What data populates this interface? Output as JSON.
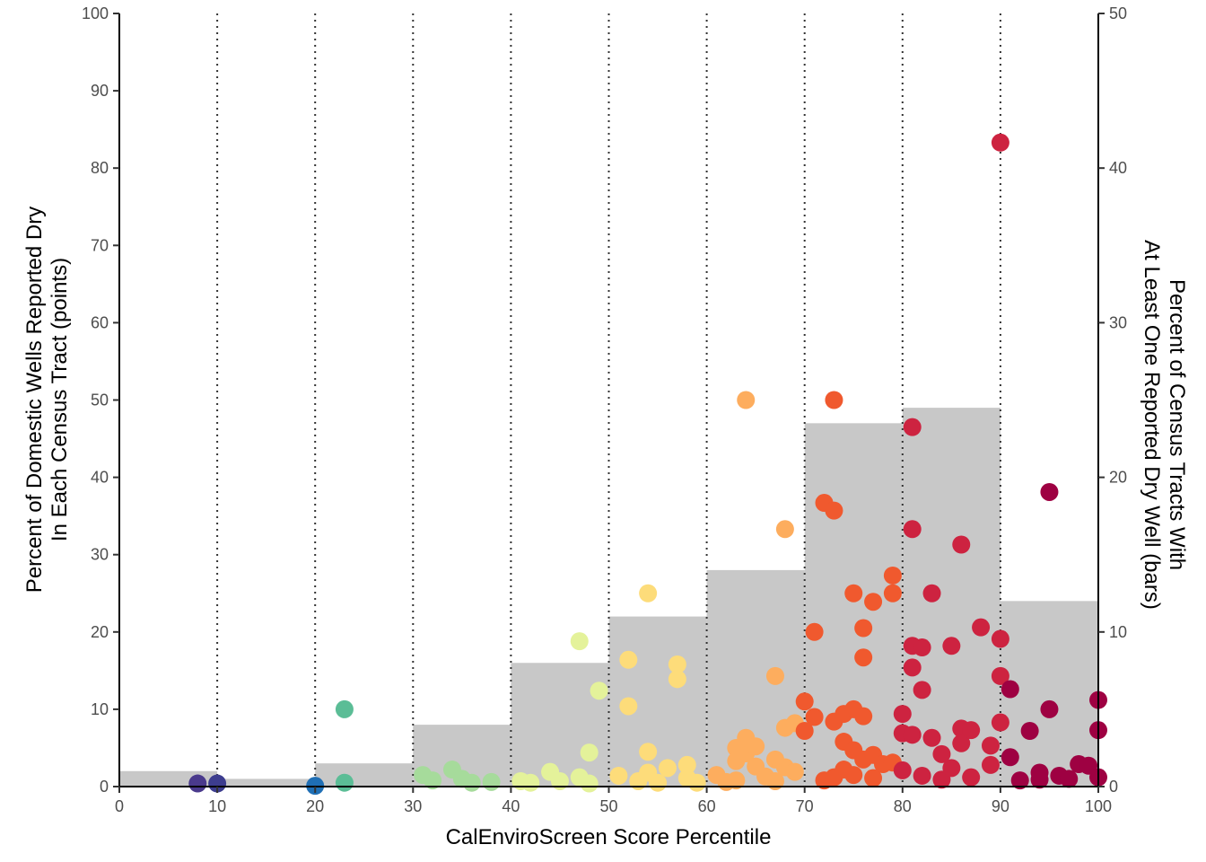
{
  "chart_data": {
    "type": "bar+scatter",
    "x_axis": {
      "title": "CalEnviroScreen Score Percentile",
      "range": [
        0,
        100
      ],
      "ticks": [
        "0",
        "10",
        "20",
        "30",
        "40",
        "50",
        "60",
        "70",
        "80",
        "90",
        "100"
      ]
    },
    "y_axis_left": {
      "title_line1": "Percent of Domestic Wells Reported Dry",
      "title_line2": "In Each Census Tract (points)",
      "range": [
        0,
        100
      ],
      "ticks": [
        "0",
        "10",
        "20",
        "30",
        "40",
        "50",
        "60",
        "70",
        "80",
        "90",
        "100"
      ]
    },
    "y_axis_right": {
      "title_line1": "Percent of Census Tracts With",
      "title_line2": "At Least One Reported Dry Well (bars)",
      "range": [
        0,
        50
      ],
      "ticks": [
        "0",
        "10",
        "20",
        "30",
        "40",
        "50"
      ]
    },
    "grid": "vertical dotted lines at 10-percentile intervals",
    "bar_color": "#c8c8c8",
    "bars": {
      "bins": [
        [
          0,
          10
        ],
        [
          10,
          20
        ],
        [
          20,
          30
        ],
        [
          30,
          40
        ],
        [
          40,
          50
        ],
        [
          50,
          60
        ],
        [
          60,
          70
        ],
        [
          70,
          80
        ],
        [
          80,
          90
        ],
        [
          90,
          100
        ]
      ],
      "values": [
        1,
        0.5,
        1.5,
        4,
        8,
        11,
        14,
        23.5,
        24.5,
        12
      ]
    },
    "points": [
      [
        8,
        0.4
      ],
      [
        10,
        0.4
      ],
      [
        20,
        0.1
      ],
      [
        23,
        10
      ],
      [
        23,
        0.5
      ],
      [
        31,
        1.5
      ],
      [
        32,
        0.8
      ],
      [
        34,
        2.2
      ],
      [
        35,
        1
      ],
      [
        36,
        0.5
      ],
      [
        38,
        0.6
      ],
      [
        41,
        0.7
      ],
      [
        42,
        0.5
      ],
      [
        44,
        1.9
      ],
      [
        45,
        0.7
      ],
      [
        47,
        18.8
      ],
      [
        47,
        1.2
      ],
      [
        48,
        4.4
      ],
      [
        48,
        0.4
      ],
      [
        49,
        12.4
      ],
      [
        51,
        1.4
      ],
      [
        52,
        16.4
      ],
      [
        52,
        10.4
      ],
      [
        53,
        0.7
      ],
      [
        54,
        25
      ],
      [
        54,
        4.5
      ],
      [
        54,
        1.8
      ],
      [
        55,
        0.5
      ],
      [
        56,
        2.4
      ],
      [
        57,
        15.8
      ],
      [
        57,
        13.9
      ],
      [
        58,
        2.8
      ],
      [
        58,
        1.1
      ],
      [
        59,
        0.5
      ],
      [
        61,
        1.5
      ],
      [
        62,
        0.6
      ],
      [
        63,
        5
      ],
      [
        63,
        3.3
      ],
      [
        63,
        0.8
      ],
      [
        64,
        4.3
      ],
      [
        64,
        50
      ],
      [
        64,
        6.3
      ],
      [
        65,
        2.6
      ],
      [
        65,
        5.2
      ],
      [
        66,
        1.3
      ],
      [
        67,
        14.3
      ],
      [
        67,
        3.5
      ],
      [
        67,
        0.7
      ],
      [
        68,
        33.3
      ],
      [
        68,
        7.6
      ],
      [
        68,
        2.5
      ],
      [
        69,
        8.2
      ],
      [
        69,
        1.9
      ],
      [
        70,
        11
      ],
      [
        70,
        7.2
      ],
      [
        71,
        20
      ],
      [
        71,
        9
      ],
      [
        72,
        36.7
      ],
      [
        72,
        0.8
      ],
      [
        73,
        35.7
      ],
      [
        73,
        50
      ],
      [
        73,
        8.4
      ],
      [
        73,
        1.2
      ],
      [
        74,
        9.4
      ],
      [
        74,
        5.8
      ],
      [
        74,
        2.2
      ],
      [
        75,
        25
      ],
      [
        75,
        10
      ],
      [
        75,
        4.7
      ],
      [
        75,
        1.5
      ],
      [
        76,
        20.5
      ],
      [
        76,
        16.7
      ],
      [
        76,
        9.1
      ],
      [
        76,
        3.5
      ],
      [
        77,
        23.9
      ],
      [
        77,
        4.1
      ],
      [
        77,
        1.1
      ],
      [
        78,
        2.9
      ],
      [
        79,
        27.3
      ],
      [
        79,
        25
      ],
      [
        79,
        3.1
      ],
      [
        80,
        9.4
      ],
      [
        80,
        6.9
      ],
      [
        80,
        2.1
      ],
      [
        81,
        46.5
      ],
      [
        81,
        33.3
      ],
      [
        81,
        18.2
      ],
      [
        81,
        15.4
      ],
      [
        81,
        6.7
      ],
      [
        82,
        18
      ],
      [
        82,
        12.5
      ],
      [
        82,
        1.4
      ],
      [
        83,
        25
      ],
      [
        83,
        6.3
      ],
      [
        84,
        4.2
      ],
      [
        84,
        0.9
      ],
      [
        85,
        18.2
      ],
      [
        85,
        2.4
      ],
      [
        86,
        31.3
      ],
      [
        86,
        7.5
      ],
      [
        86,
        5.6
      ],
      [
        87,
        7.3
      ],
      [
        87,
        1.2
      ],
      [
        88,
        20.6
      ],
      [
        89,
        5.3
      ],
      [
        89,
        2.8
      ],
      [
        90,
        19.1
      ],
      [
        90,
        14.3
      ],
      [
        90,
        83.3
      ],
      [
        90,
        8.3
      ],
      [
        91,
        12.6
      ],
      [
        91,
        3.8
      ],
      [
        92,
        0.8
      ],
      [
        93,
        7.2
      ],
      [
        94,
        0.9
      ],
      [
        94,
        1.8
      ],
      [
        95,
        38.1
      ],
      [
        95,
        10
      ],
      [
        96,
        1.4
      ],
      [
        97,
        1
      ],
      [
        98,
        2.9
      ],
      [
        99,
        2.7
      ],
      [
        100,
        11.2
      ],
      [
        100,
        7.3
      ],
      [
        100,
        1.2
      ]
    ],
    "point_colors": {
      "0-10": "#4a3a8c",
      "10-20": "#3d3d8f",
      "20-30": "#1f6fb5",
      "20-30-alt": "#5bbd96",
      "30-40": "#a6db9b",
      "40-50": "#e4f29a",
      "50-60": "#fddc7a",
      "60-70": "#fdad5e",
      "70-80": "#f0592e",
      "80-90": "#cd2340",
      "90-100": "#9e0142"
    }
  }
}
